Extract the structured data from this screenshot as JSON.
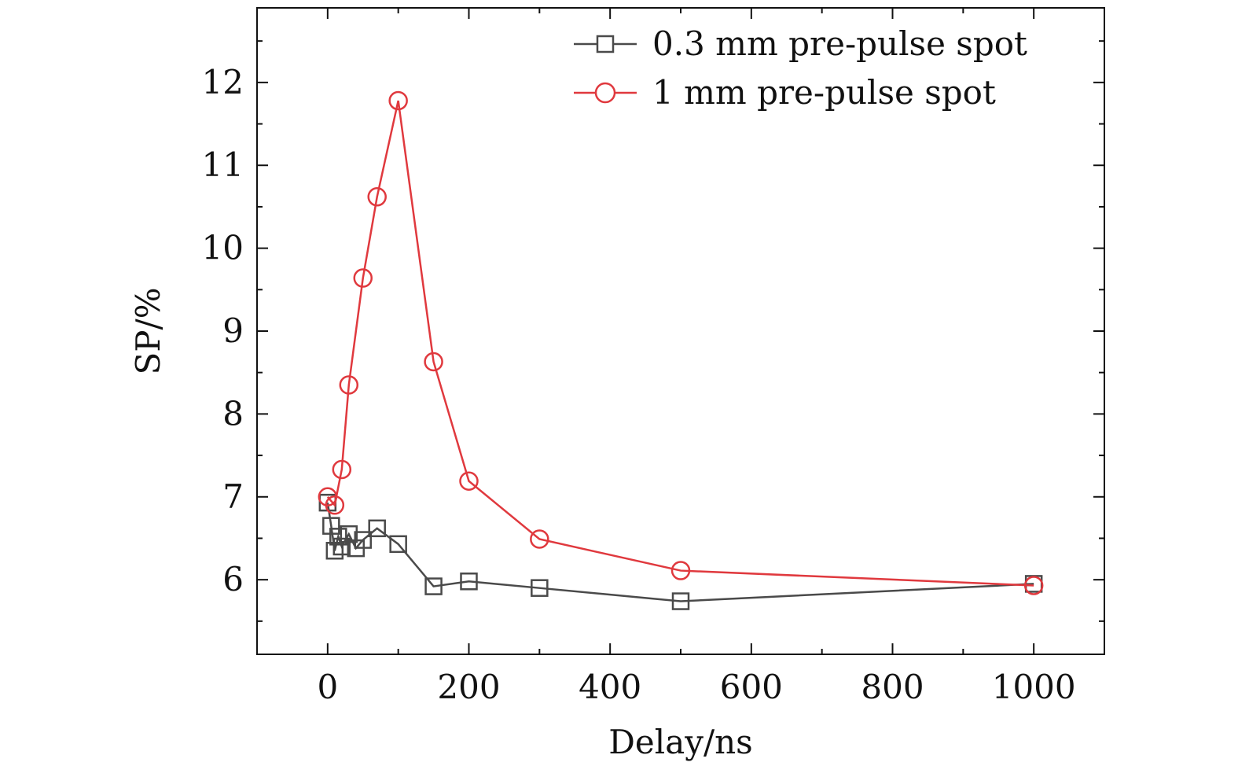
{
  "chart_data": {
    "type": "line",
    "title": "",
    "xlabel": "Delay/ns",
    "ylabel": "SP/%",
    "xlim": [
      -100,
      1100
    ],
    "ylim": [
      5.1,
      12.9
    ],
    "xticks": [
      0,
      200,
      400,
      600,
      800,
      1000
    ],
    "xtick_labels": [
      "0",
      "200",
      "400",
      "600",
      "800",
      "1000"
    ],
    "yticks": [
      6,
      7,
      8,
      9,
      10,
      11,
      12
    ],
    "ytick_labels": [
      "6",
      "7",
      "8",
      "9",
      "10",
      "11",
      "12"
    ],
    "grid": false,
    "legend_position": "top-right",
    "series": [
      {
        "name": "0.3 mm pre-pulse spot",
        "marker": "square",
        "color": "#4a4a4a",
        "x": [
          0,
          5,
          10,
          15,
          20,
          30,
          40,
          50,
          70,
          100,
          150,
          200,
          300,
          500,
          1000
        ],
        "y": [
          6.93,
          6.65,
          6.35,
          6.52,
          6.4,
          6.55,
          6.38,
          6.48,
          6.62,
          6.43,
          5.92,
          5.98,
          5.9,
          5.74,
          5.95
        ]
      },
      {
        "name": "1 mm pre-pulse spot",
        "marker": "circle",
        "color": "#e0393e",
        "x": [
          0,
          10,
          20,
          30,
          50,
          70,
          100,
          150,
          200,
          300,
          500,
          1000
        ],
        "y": [
          7.0,
          6.9,
          7.33,
          8.35,
          9.64,
          10.62,
          11.78,
          8.63,
          7.19,
          6.49,
          6.11,
          5.93
        ]
      }
    ]
  }
}
